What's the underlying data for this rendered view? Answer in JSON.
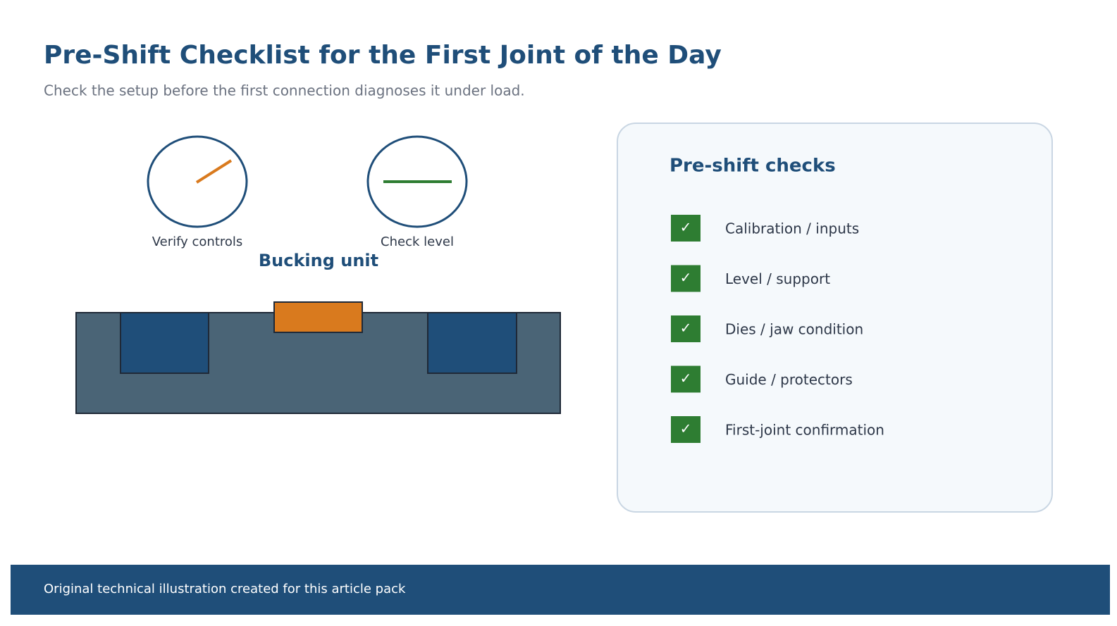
{
  "header": {
    "title": "Pre-Shift Checklist for the First Joint of the Day",
    "subtitle": "Check the setup before the first connection diagnoses it under load."
  },
  "gauges": [
    {
      "label": "Verify controls"
    },
    {
      "label": "Check level"
    }
  ],
  "unit": {
    "label": "Bucking unit"
  },
  "panel": {
    "title": "Pre-shift checks",
    "items": [
      {
        "mark": "✓",
        "label": "Calibration / inputs"
      },
      {
        "mark": "✓",
        "label": "Level / support"
      },
      {
        "mark": "✓",
        "label": "Dies / jaw condition"
      },
      {
        "mark": "✓",
        "label": "Guide / protectors"
      },
      {
        "mark": "✓",
        "label": "First-joint confirmation"
      }
    ]
  },
  "footer": {
    "text": "Original technical illustration created for this article pack"
  }
}
